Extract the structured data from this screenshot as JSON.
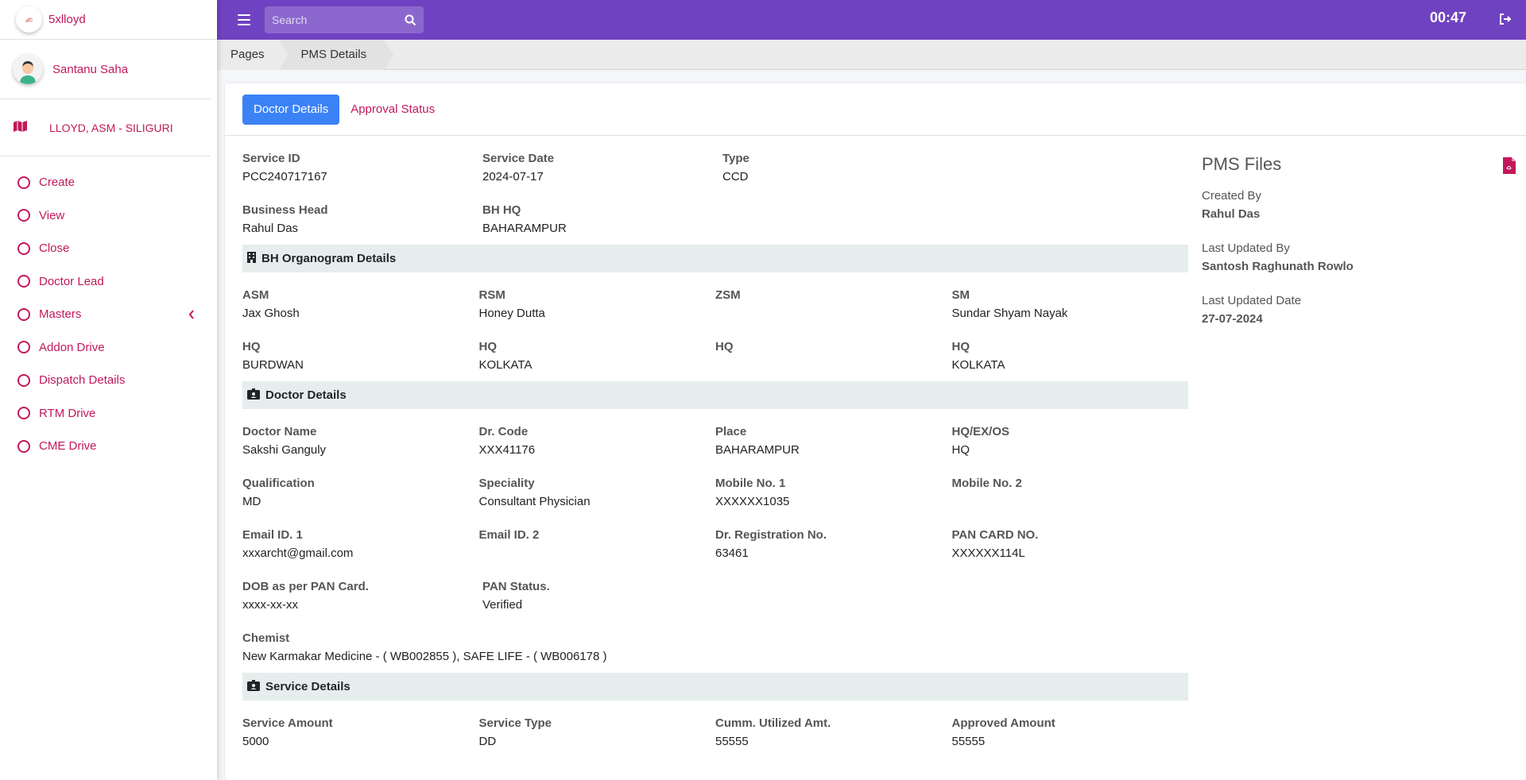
{
  "brand": {
    "name": "5xlloyd"
  },
  "user": {
    "name": "Santanu Saha",
    "role": "LLOYD, ASM - SILIGURI"
  },
  "nav": [
    {
      "label": "Create"
    },
    {
      "label": "View"
    },
    {
      "label": "Close"
    },
    {
      "label": "Doctor Lead"
    },
    {
      "label": "Masters"
    },
    {
      "label": "Addon Drive"
    },
    {
      "label": "Dispatch Details"
    },
    {
      "label": "RTM Drive"
    },
    {
      "label": "CME Drive"
    }
  ],
  "topbar": {
    "search_placeholder": "Search",
    "clock": "00:47"
  },
  "breadcrumb": {
    "first": "Pages",
    "second": "PMS Details"
  },
  "tabs": {
    "active": "Doctor Details",
    "other": "Approval Status"
  },
  "service": {
    "service_id_label": "Service ID",
    "service_id": "PCC240717167",
    "service_date_label": "Service Date",
    "service_date": "2024-07-17",
    "type_label": "Type",
    "type": "CCD",
    "bh_label": "Business Head",
    "bh": "Rahul Das",
    "bh_hq_label": "BH HQ",
    "bh_hq": "BAHARAMPUR"
  },
  "organogram": {
    "title": "BH Organogram Details",
    "asm_label": "ASM",
    "asm": "Jax Ghosh",
    "rsm_label": "RSM",
    "rsm": "Honey Dutta",
    "zsm_label": "ZSM",
    "zsm": "",
    "sm_label": "SM",
    "sm": "Sundar Shyam Nayak",
    "hq_label": "HQ",
    "asm_hq": "BURDWAN",
    "rsm_hq": "KOLKATA",
    "zsm_hq": "",
    "sm_hq": "KOLKATA"
  },
  "doctor": {
    "title": "Doctor Details",
    "name_label": "Doctor Name",
    "name": "Sakshi Ganguly",
    "code_label": "Dr. Code",
    "code": "XXX41176",
    "place_label": "Place",
    "place": "BAHARAMPUR",
    "hqexos_label": "HQ/EX/OS",
    "hqexos": "HQ",
    "qual_label": "Qualification",
    "qual": "MD",
    "spec_label": "Speciality",
    "spec": "Consultant Physician",
    "mob1_label": "Mobile No. 1",
    "mob1": "XXXXXX1035",
    "mob2_label": "Mobile No. 2",
    "mob2": "",
    "email1_label": "Email ID. 1",
    "email1": "xxxarcht@gmail.com",
    "email2_label": "Email ID. 2",
    "email2": "",
    "reg_label": "Dr. Registration No.",
    "reg": "63461",
    "pan_label": "PAN CARD NO.",
    "pan": "XXXXXX114L",
    "dob_label": "DOB as per PAN Card.",
    "dob": "xxxx-xx-xx",
    "pan_status_label": "PAN Status.",
    "pan_status": "Verified",
    "chemist_label": "Chemist",
    "chemist": "New Karmakar Medicine - ( WB002855 ), SAFE LIFE - ( WB006178 )"
  },
  "service_details": {
    "title": "Service Details",
    "amount_label": "Service Amount",
    "amount": "5000",
    "type_label": "Service Type",
    "type": "DD",
    "cumm_label": "Cumm. Utilized Amt.",
    "cumm": "55555",
    "approved_label": "Approved Amount",
    "approved": "55555"
  },
  "side": {
    "title": "PMS Files",
    "created_by_label": "Created By",
    "created_by": "Rahul Das",
    "updated_by_label": "Last Updated By",
    "updated_by": "Santosh Raghunath Rowlo",
    "updated_date_label": "Last Updated Date",
    "updated_date": "27-07-2024"
  },
  "colors": {
    "accent": "#6f42c1",
    "link": "#c2185b",
    "primary": "#3b82f6",
    "section_bg": "#e5eeed"
  }
}
